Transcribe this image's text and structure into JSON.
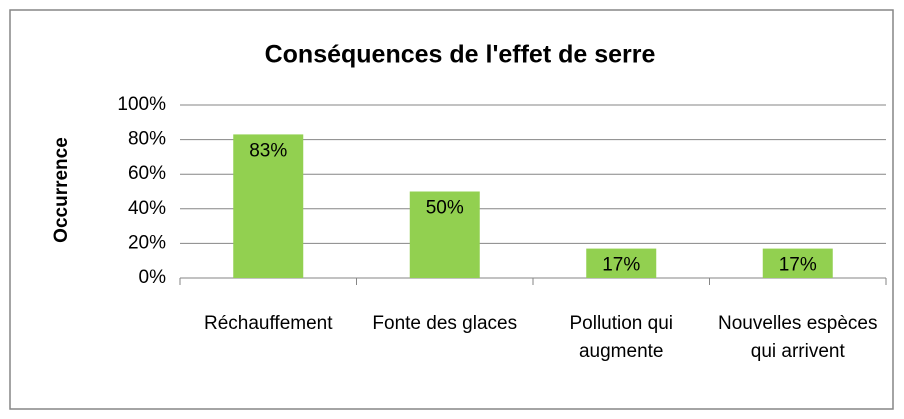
{
  "chart_data": {
    "type": "bar",
    "title": "Conséquences de l'effet de serre",
    "y_label": "Occurrence",
    "categories": [
      "Réchauffement",
      "Fonte des glaces",
      "Pollution qui augmente",
      "Nouvelles espèces qui arrivent"
    ],
    "values": [
      83,
      50,
      17,
      17
    ],
    "value_labels": [
      "83%",
      "50%",
      "17%",
      "17%"
    ],
    "color": "#92d050",
    "ylim": [
      0,
      100
    ],
    "yticks": [
      {
        "value": 0,
        "label": "0%"
      },
      {
        "value": 20,
        "label": "20%"
      },
      {
        "value": 40,
        "label": "40%"
      },
      {
        "value": 60,
        "label": "60%"
      },
      {
        "value": 80,
        "label": "80%"
      },
      {
        "value": 100,
        "label": "100%"
      }
    ],
    "grid": true
  }
}
